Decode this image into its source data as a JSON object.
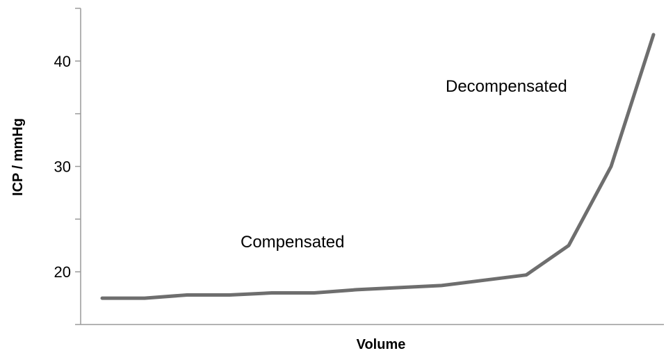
{
  "chart_data": {
    "type": "line",
    "title": "",
    "xlabel": "Volume",
    "ylabel": "ICP / mmHg",
    "x": [
      1,
      2,
      3,
      4,
      5,
      6,
      7,
      8,
      9,
      10,
      11,
      12,
      13,
      14
    ],
    "series": [
      {
        "values": [
          17.5,
          17.5,
          17.8,
          17.8,
          18.0,
          18.0,
          18.3,
          18.5,
          18.7,
          19.2,
          19.7,
          22.5,
          30.0,
          42.5
        ]
      }
    ],
    "ylim": [
      15,
      45
    ],
    "yticks": [
      20,
      30,
      40
    ],
    "grid": false,
    "annotations": [
      {
        "text": "Compensated"
      },
      {
        "text": "Decompensated"
      }
    ],
    "colors": {
      "line": "#6e6e6e",
      "axis": "#9a9a9a"
    }
  }
}
